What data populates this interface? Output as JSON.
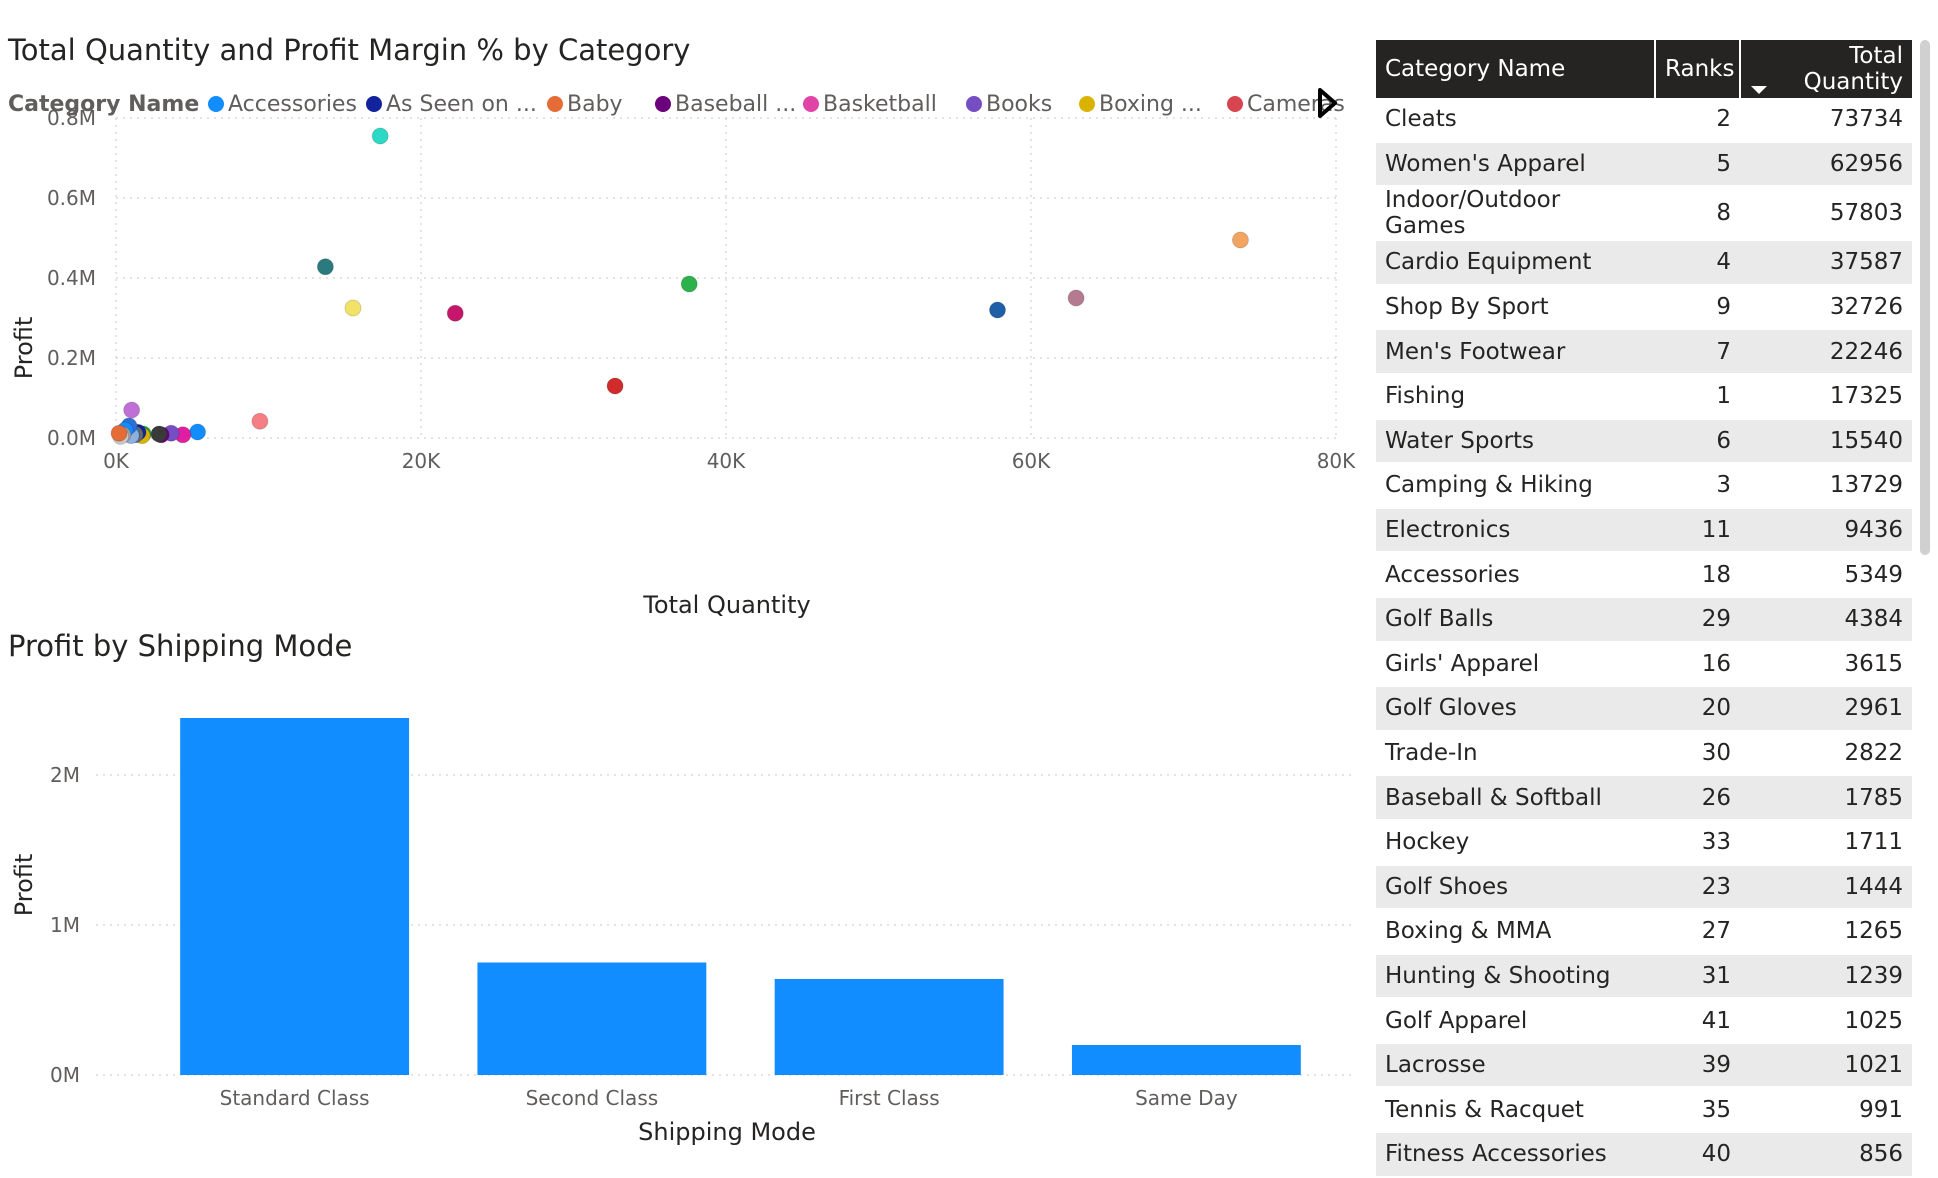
{
  "scatter": {
    "title": "Total Quantity and Profit Margin % by Category",
    "legend_title": "Category Name",
    "legend": [
      {
        "label": "Accessories",
        "color": "#118DFF"
      },
      {
        "label": "As Seen on  ...",
        "color": "#12239E"
      },
      {
        "label": "Baby",
        "color": "#E66C37"
      },
      {
        "label": "Baseball ...",
        "color": "#6B007B"
      },
      {
        "label": "Basketball",
        "color": "#E044A7"
      },
      {
        "label": "Books",
        "color": "#744EC2"
      },
      {
        "label": "Boxing ...",
        "color": "#D9B300"
      },
      {
        "label": "Cameras",
        "color": "#D64550"
      }
    ]
  },
  "bar": {
    "title": "Profit by Shipping Mode"
  },
  "table": {
    "headers": [
      "Category Name",
      "Ranks",
      "Total Quantity"
    ],
    "rows": [
      [
        "Cleats",
        "2",
        "73734"
      ],
      [
        "Women's Apparel",
        "5",
        "62956"
      ],
      [
        "Indoor/Outdoor Games",
        "8",
        "57803"
      ],
      [
        "Cardio Equipment",
        "4",
        "37587"
      ],
      [
        "Shop By Sport",
        "9",
        "32726"
      ],
      [
        "Men's Footwear",
        "7",
        "22246"
      ],
      [
        "Fishing",
        "1",
        "17325"
      ],
      [
        "Water Sports",
        "6",
        "15540"
      ],
      [
        "Camping & Hiking",
        "3",
        "13729"
      ],
      [
        "Electronics",
        "11",
        "9436"
      ],
      [
        "Accessories",
        "18",
        "5349"
      ],
      [
        "Golf Balls",
        "29",
        "4384"
      ],
      [
        "Girls' Apparel",
        "16",
        "3615"
      ],
      [
        "Golf Gloves",
        "20",
        "2961"
      ],
      [
        "Trade-In",
        "30",
        "2822"
      ],
      [
        "Baseball & Softball",
        "26",
        "1785"
      ],
      [
        "Hockey",
        "33",
        "1711"
      ],
      [
        "Golf Shoes",
        "23",
        "1444"
      ],
      [
        "Boxing & MMA",
        "27",
        "1265"
      ],
      [
        "Hunting & Shooting",
        "31",
        "1239"
      ],
      [
        "Golf Apparel",
        "41",
        "1025"
      ],
      [
        "Lacrosse",
        "39",
        "1021"
      ],
      [
        "Tennis & Racquet",
        "35",
        "991"
      ],
      [
        "Fitness Accessories",
        "40",
        "856"
      ]
    ]
  },
  "chart_data": [
    {
      "type": "scatter",
      "title": "Total Quantity and Profit Margin % by Category",
      "xlabel": "Total Quantity",
      "ylabel": "Profit",
      "xlim": [
        0,
        80000
      ],
      "ylim": [
        0,
        800000
      ],
      "x_ticks": [
        "0K",
        "20K",
        "40K",
        "60K",
        "80K"
      ],
      "y_ticks": [
        "0.0M",
        "0.2M",
        "0.4M",
        "0.6M",
        "0.8M"
      ],
      "grid": true,
      "points": [
        {
          "x": 17325,
          "y": 755000,
          "color": "#2BD9C5"
        },
        {
          "x": 73734,
          "y": 495000,
          "color": "#F4A461"
        },
        {
          "x": 13729,
          "y": 428000,
          "color": "#2B7A7E"
        },
        {
          "x": 37587,
          "y": 385000,
          "color": "#2BB24C"
        },
        {
          "x": 62956,
          "y": 350000,
          "color": "#B47A8F"
        },
        {
          "x": 15540,
          "y": 325000,
          "color": "#F2E266"
        },
        {
          "x": 57803,
          "y": 320000,
          "color": "#1F5FA8"
        },
        {
          "x": 22246,
          "y": 312000,
          "color": "#C4176B"
        },
        {
          "x": 32726,
          "y": 130000,
          "color": "#D12B2B"
        },
        {
          "x": 9436,
          "y": 42000,
          "color": "#F57F85"
        },
        {
          "x": 5349,
          "y": 15000,
          "color": "#118DFF"
        },
        {
          "x": 4384,
          "y": 8000,
          "color": "#E01FA0"
        },
        {
          "x": 3615,
          "y": 12000,
          "color": "#744EC2"
        },
        {
          "x": 2961,
          "y": 8000,
          "color": "#6B007B"
        },
        {
          "x": 2822,
          "y": 10000,
          "color": "#3A3A3A"
        },
        {
          "x": 1785,
          "y": 10000,
          "color": "#1B9E3E"
        },
        {
          "x": 1711,
          "y": 6000,
          "color": "#D9B300"
        },
        {
          "x": 1444,
          "y": 14000,
          "color": "#12239E"
        },
        {
          "x": 1265,
          "y": 8000,
          "color": "#5A7F9E"
        },
        {
          "x": 1239,
          "y": 10000,
          "color": "#6B6B6B"
        },
        {
          "x": 1025,
          "y": 70000,
          "color": "#C06FD6"
        },
        {
          "x": 1021,
          "y": 10000,
          "color": "#2C8CCF"
        },
        {
          "x": 991,
          "y": 6000,
          "color": "#8DB0E0"
        },
        {
          "x": 856,
          "y": 30000,
          "color": "#2D6FD6"
        },
        {
          "x": 600,
          "y": 20000,
          "color": "#118DFF"
        },
        {
          "x": 450,
          "y": 8000,
          "color": "#A0A0A0"
        },
        {
          "x": 300,
          "y": 4000,
          "color": "#C9C9C9"
        },
        {
          "x": 200,
          "y": 12000,
          "color": "#E66C37"
        }
      ]
    },
    {
      "type": "bar",
      "title": "Profit by Shipping Mode",
      "xlabel": "Shipping Mode",
      "ylabel": "Profit",
      "categories": [
        "Standard Class",
        "Second Class",
        "First Class",
        "Same Day"
      ],
      "values": [
        2380000,
        750000,
        640000,
        200000
      ],
      "ylim": [
        0,
        2500000
      ],
      "y_ticks": [
        "0M",
        "1M",
        "2M"
      ],
      "color": "#118DFF"
    }
  ]
}
